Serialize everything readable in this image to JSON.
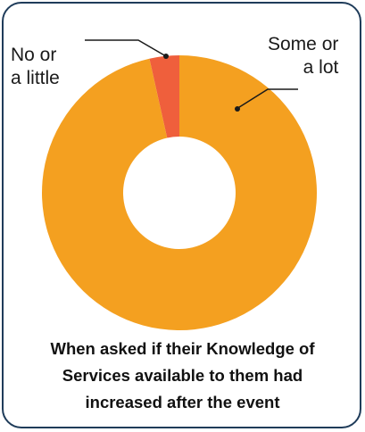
{
  "chart_data": {
    "type": "pie",
    "donut": true,
    "slices": [
      {
        "label": "No or a little",
        "value": 3.5,
        "color": "#ef5f3c"
      },
      {
        "label": "Some or a lot",
        "value": 96.5,
        "color": "#f4a020"
      }
    ],
    "title": "When asked if their Knowledge of Services available to them had increased after the event"
  },
  "labels": {
    "left": [
      "No or",
      "a little"
    ],
    "right": [
      "Some or",
      "a lot"
    ]
  },
  "caption": [
    "When asked if their Knowledge of",
    "Services available to them had",
    "increased after the event"
  ],
  "colors": {
    "border": "#1f3c5a",
    "leader": "#1a1a1a"
  }
}
